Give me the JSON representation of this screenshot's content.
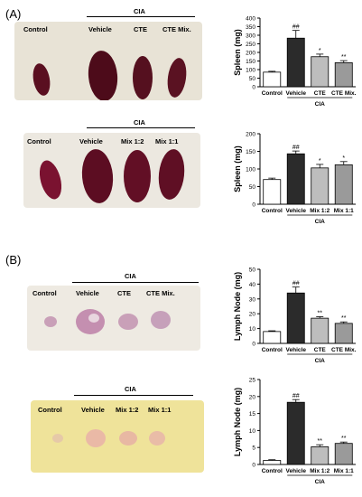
{
  "panel_a": {
    "label": "(A)"
  },
  "panel_b": {
    "label": "(B)"
  },
  "photos": [
    {
      "group_label": "CIA",
      "labels": [
        "Control",
        "Vehicle",
        "CTE",
        "CTE Mix."
      ]
    },
    {
      "group_label": "CIA",
      "labels": [
        "Control",
        "Vehicle",
        "Mix 1:2",
        "Mix 1:1"
      ]
    },
    {
      "group_label": "CIA",
      "labels": [
        "Control",
        "Vehicle",
        "CTE",
        "CTE Mix."
      ]
    },
    {
      "group_label": "CIA",
      "labels": [
        "Control",
        "Vehicle",
        "Mix 1:2",
        "Mix 1:1"
      ]
    }
  ],
  "colors": {
    "control": "#ffffff",
    "vehicle": "#2b2b2b",
    "treat1": "#bdbdbd",
    "treat2": "#9a9a9a",
    "spleen": "#5a0f20",
    "node": "#c9a0b8"
  },
  "chart_data": [
    {
      "type": "bar",
      "ylabel": "Spleen (mg)",
      "ylim": [
        0,
        400
      ],
      "yticks": [
        0,
        50,
        100,
        150,
        200,
        250,
        300,
        350,
        400
      ],
      "categories": [
        "Control",
        "Vehicle",
        "CTE",
        "CTE Mix."
      ],
      "values": [
        85,
        283,
        175,
        140
      ],
      "errors": [
        5,
        45,
        15,
        12
      ],
      "significance": [
        "",
        "##",
        "*",
        "**"
      ],
      "group_label": "CIA",
      "group_span": [
        1,
        3
      ]
    },
    {
      "type": "bar",
      "ylabel": "Spleen (mg)",
      "ylim": [
        0,
        200
      ],
      "yticks": [
        0,
        50,
        100,
        150,
        200
      ],
      "categories": [
        "Control",
        "Vehicle",
        "Mix 1:2",
        "Mix 1:1"
      ],
      "values": [
        70,
        143,
        103,
        112
      ],
      "errors": [
        4,
        8,
        10,
        9
      ],
      "significance": [
        "",
        "##",
        "*",
        "*"
      ],
      "group_label": "CIA",
      "group_span": [
        1,
        3
      ]
    },
    {
      "type": "bar",
      "ylabel": "Lymph Node (mg)",
      "ylim": [
        0,
        50
      ],
      "yticks": [
        0,
        10,
        20,
        30,
        40,
        50
      ],
      "categories": [
        "Control",
        "Vehicle",
        "CTE",
        "CTE Mix."
      ],
      "values": [
        8,
        34,
        17,
        13.5
      ],
      "errors": [
        0.5,
        4,
        1,
        1
      ],
      "significance": [
        "",
        "##",
        "**",
        "**"
      ],
      "group_label": "CIA",
      "group_span": [
        1,
        3
      ]
    },
    {
      "type": "bar",
      "ylabel": "Lymph Node (mg)",
      "ylim": [
        0,
        25
      ],
      "yticks": [
        0,
        5,
        10,
        15,
        20,
        25
      ],
      "categories": [
        "Control",
        "Vehicle",
        "Mix 1:2",
        "Mix 1:1"
      ],
      "values": [
        1.2,
        18.3,
        5.2,
        6.2
      ],
      "errors": [
        0.2,
        0.8,
        0.6,
        0.4
      ],
      "significance": [
        "",
        "##",
        "**",
        "**"
      ],
      "group_label": "CIA",
      "group_span": [
        1,
        3
      ]
    }
  ]
}
